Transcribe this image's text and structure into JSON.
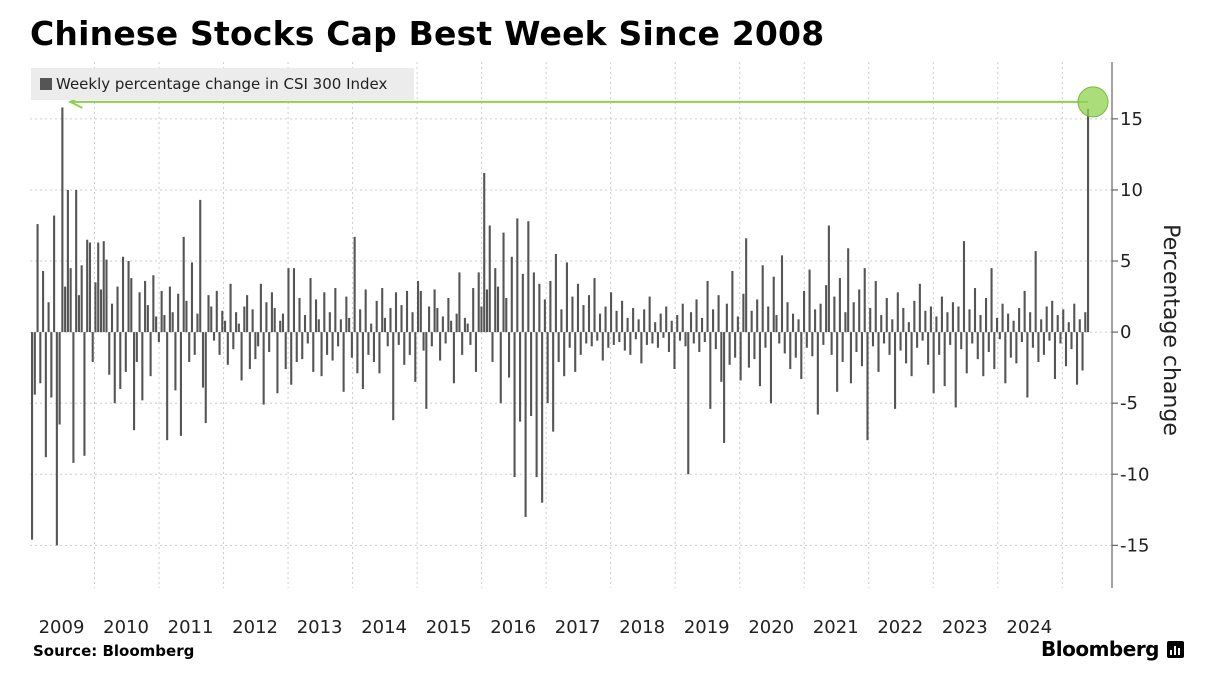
{
  "header": {
    "title": "Chinese Stocks Cap Best Week Since 2008"
  },
  "legend": {
    "label": "Weekly percentage change in CSI 300 Index"
  },
  "footer": {
    "source": "Source: Bloomberg",
    "brand": "Bloomberg"
  },
  "colors": {
    "bar": "#555555",
    "highlight": "#8fd14f",
    "grid": "#cccccc"
  },
  "chart_data": {
    "type": "bar",
    "title": "Chinese Stocks Cap Best Week Since 2008",
    "ylabel": "Percentage change",
    "ylim": [
      -18,
      19
    ],
    "yticks": [
      15,
      10,
      5,
      0,
      -5,
      -10,
      -15
    ],
    "ytick_labels": [
      "15",
      "10",
      "5",
      "0",
      "-5",
      "-10",
      "-15"
    ],
    "xlim": [
      2008.0,
      2024.77
    ],
    "year_ticks": [
      2009,
      2010,
      2011,
      2012,
      2013,
      2014,
      2015,
      2016,
      2017,
      2018,
      2019,
      2020,
      2021,
      2022,
      2023,
      2024
    ],
    "series": [
      {
        "name": "Weekly percentage change in CSI 300 Index",
        "values": [
          -14.6,
          -4.4,
          7.6,
          -3.6,
          4.3,
          -8.8,
          2.1,
          -4.6,
          8.2,
          -15.0,
          -6.5,
          15.8,
          3.2,
          10.0,
          4.5,
          -9.2,
          10.0,
          2.6,
          4.7,
          -8.7,
          6.5,
          6.3,
          -2.1,
          3.5,
          6.3,
          3.0,
          6.4,
          5.1,
          -3.0,
          2.0,
          -5.0,
          3.2,
          -4.0,
          5.3,
          -2.8,
          5.0,
          3.8,
          -6.9,
          -2.1,
          2.8,
          -4.8,
          3.6,
          1.9,
          -3.1,
          4.0,
          1.1,
          -0.7,
          2.9,
          1.2,
          -7.6,
          3.2,
          1.4,
          -4.1,
          2.7,
          -7.3,
          6.7,
          2.2,
          -2.1,
          4.9,
          -1.6,
          1.3,
          9.3,
          -3.9,
          -6.4,
          2.6,
          1.8,
          -0.6,
          2.9,
          -1.6,
          1.5,
          0.8,
          -2.3,
          3.4,
          -1.2,
          1.4,
          0.6,
          -3.4,
          1.8,
          2.6,
          -2.6,
          1.6,
          -1.9,
          -1.0,
          3.4,
          -5.1,
          2.1,
          -1.4,
          2.8,
          1.7,
          -4.3,
          0.8,
          1.3,
          -2.6,
          4.5,
          -3.7,
          4.5,
          -2.1,
          2.4,
          -1.9,
          1.2,
          -0.8,
          3.8,
          -2.8,
          2.3,
          0.9,
          -3.1,
          2.8,
          -1.6,
          1.4,
          -2.0,
          3.1,
          -1.0,
          0.9,
          -4.2,
          2.5,
          1.0,
          -1.8,
          6.7,
          -2.9,
          1.6,
          -4.0,
          3.0,
          -1.6,
          0.6,
          -2.1,
          2.2,
          -2.9,
          3.1,
          1.0,
          -1.0,
          1.7,
          -6.2,
          2.8,
          -0.9,
          1.9,
          -2.3,
          2.9,
          -1.6,
          1.4,
          -3.5,
          3.6,
          2.9,
          -1.3,
          -5.4,
          1.8,
          -1.0,
          3.0,
          1.7,
          -2.0,
          1.1,
          -0.8,
          2.4,
          0.8,
          -3.6,
          1.3,
          4.2,
          -1.6,
          1.0,
          0.6,
          -0.9,
          3.1,
          -2.8,
          4.2,
          1.8,
          11.2,
          3.0,
          7.5,
          -2.1,
          4.5,
          3.2,
          -5.0,
          7.0,
          2.4,
          -3.2,
          5.3,
          -10.2,
          8.0,
          -6.3,
          4.1,
          -13.0,
          7.8,
          -5.9,
          4.2,
          -10.2,
          3.4,
          -12.0,
          2.3,
          -5.0,
          3.6,
          -7.0,
          5.5,
          -2.1,
          1.6,
          -3.1,
          4.9,
          -1.1,
          2.5,
          -2.8,
          3.4,
          -1.6,
          1.9,
          -0.8,
          2.6,
          -1.0,
          3.8,
          -0.6,
          1.3,
          -2.0,
          1.8,
          -1.1,
          2.8,
          -0.9,
          1.5,
          -0.7,
          2.2,
          -1.3,
          1.0,
          -1.6,
          1.7,
          -0.5,
          0.9,
          -2.2,
          1.6,
          -0.9,
          2.5,
          -0.8,
          0.7,
          -1.1,
          1.3,
          -0.4,
          1.8,
          -1.4,
          0.8,
          -2.6,
          1.2,
          -0.6,
          2.0,
          -1.0,
          -10.0,
          1.4,
          -0.8,
          2.3,
          -1.4,
          1.0,
          -0.7,
          3.6,
          -5.4,
          1.6,
          -1.2,
          2.6,
          -3.5,
          -7.8,
          2.0,
          -2.3,
          4.3,
          -1.8,
          1.1,
          -3.4,
          2.7,
          6.6,
          -2.5,
          1.5,
          -1.9,
          2.3,
          -3.8,
          4.7,
          -1.1,
          1.8,
          -5.0,
          3.9,
          1.2,
          -0.8,
          5.4,
          -1.5,
          2.1,
          -2.6,
          1.3,
          -1.8,
          0.9,
          -3.3,
          2.9,
          -1.1,
          4.4,
          -1.7,
          1.6,
          -5.8,
          2.0,
          -0.9,
          3.3,
          7.5,
          -1.6,
          2.5,
          -4.2,
          3.8,
          -2.1,
          1.4,
          5.9,
          -3.6,
          2.1,
          -1.4,
          3.0,
          -2.4,
          4.5,
          -7.6,
          1.7,
          -1.0,
          3.6,
          -2.8,
          1.2,
          -0.8,
          2.4,
          -1.6,
          0.9,
          -5.4,
          2.8,
          -1.3,
          1.7,
          -2.2,
          0.7,
          -3.1,
          2.2,
          -1.1,
          3.4,
          -0.6,
          1.5,
          -2.3,
          1.8,
          -4.3,
          1.1,
          -1.6,
          2.5,
          -3.8,
          1.4,
          -0.9,
          2.1,
          -5.3,
          1.8,
          -1.2,
          6.4,
          -2.9,
          1.6,
          -0.8,
          3.1,
          -1.9,
          1.2,
          -3.1,
          2.4,
          -1.4,
          4.5,
          -2.6,
          1.0,
          -0.5,
          2.0,
          -3.6,
          1.3,
          -1.8,
          0.8,
          -2.2,
          1.7,
          -0.7,
          2.9,
          -4.6,
          1.4,
          -1.1,
          5.7,
          -2.1,
          0.9,
          -1.6,
          1.8,
          -0.6,
          2.2,
          -3.3,
          1.2,
          -0.8,
          1.6,
          -2.4,
          0.7,
          -1.2,
          2.0,
          -3.7,
          0.9,
          -2.7,
          1.4,
          15.7
        ]
      }
    ]
  }
}
